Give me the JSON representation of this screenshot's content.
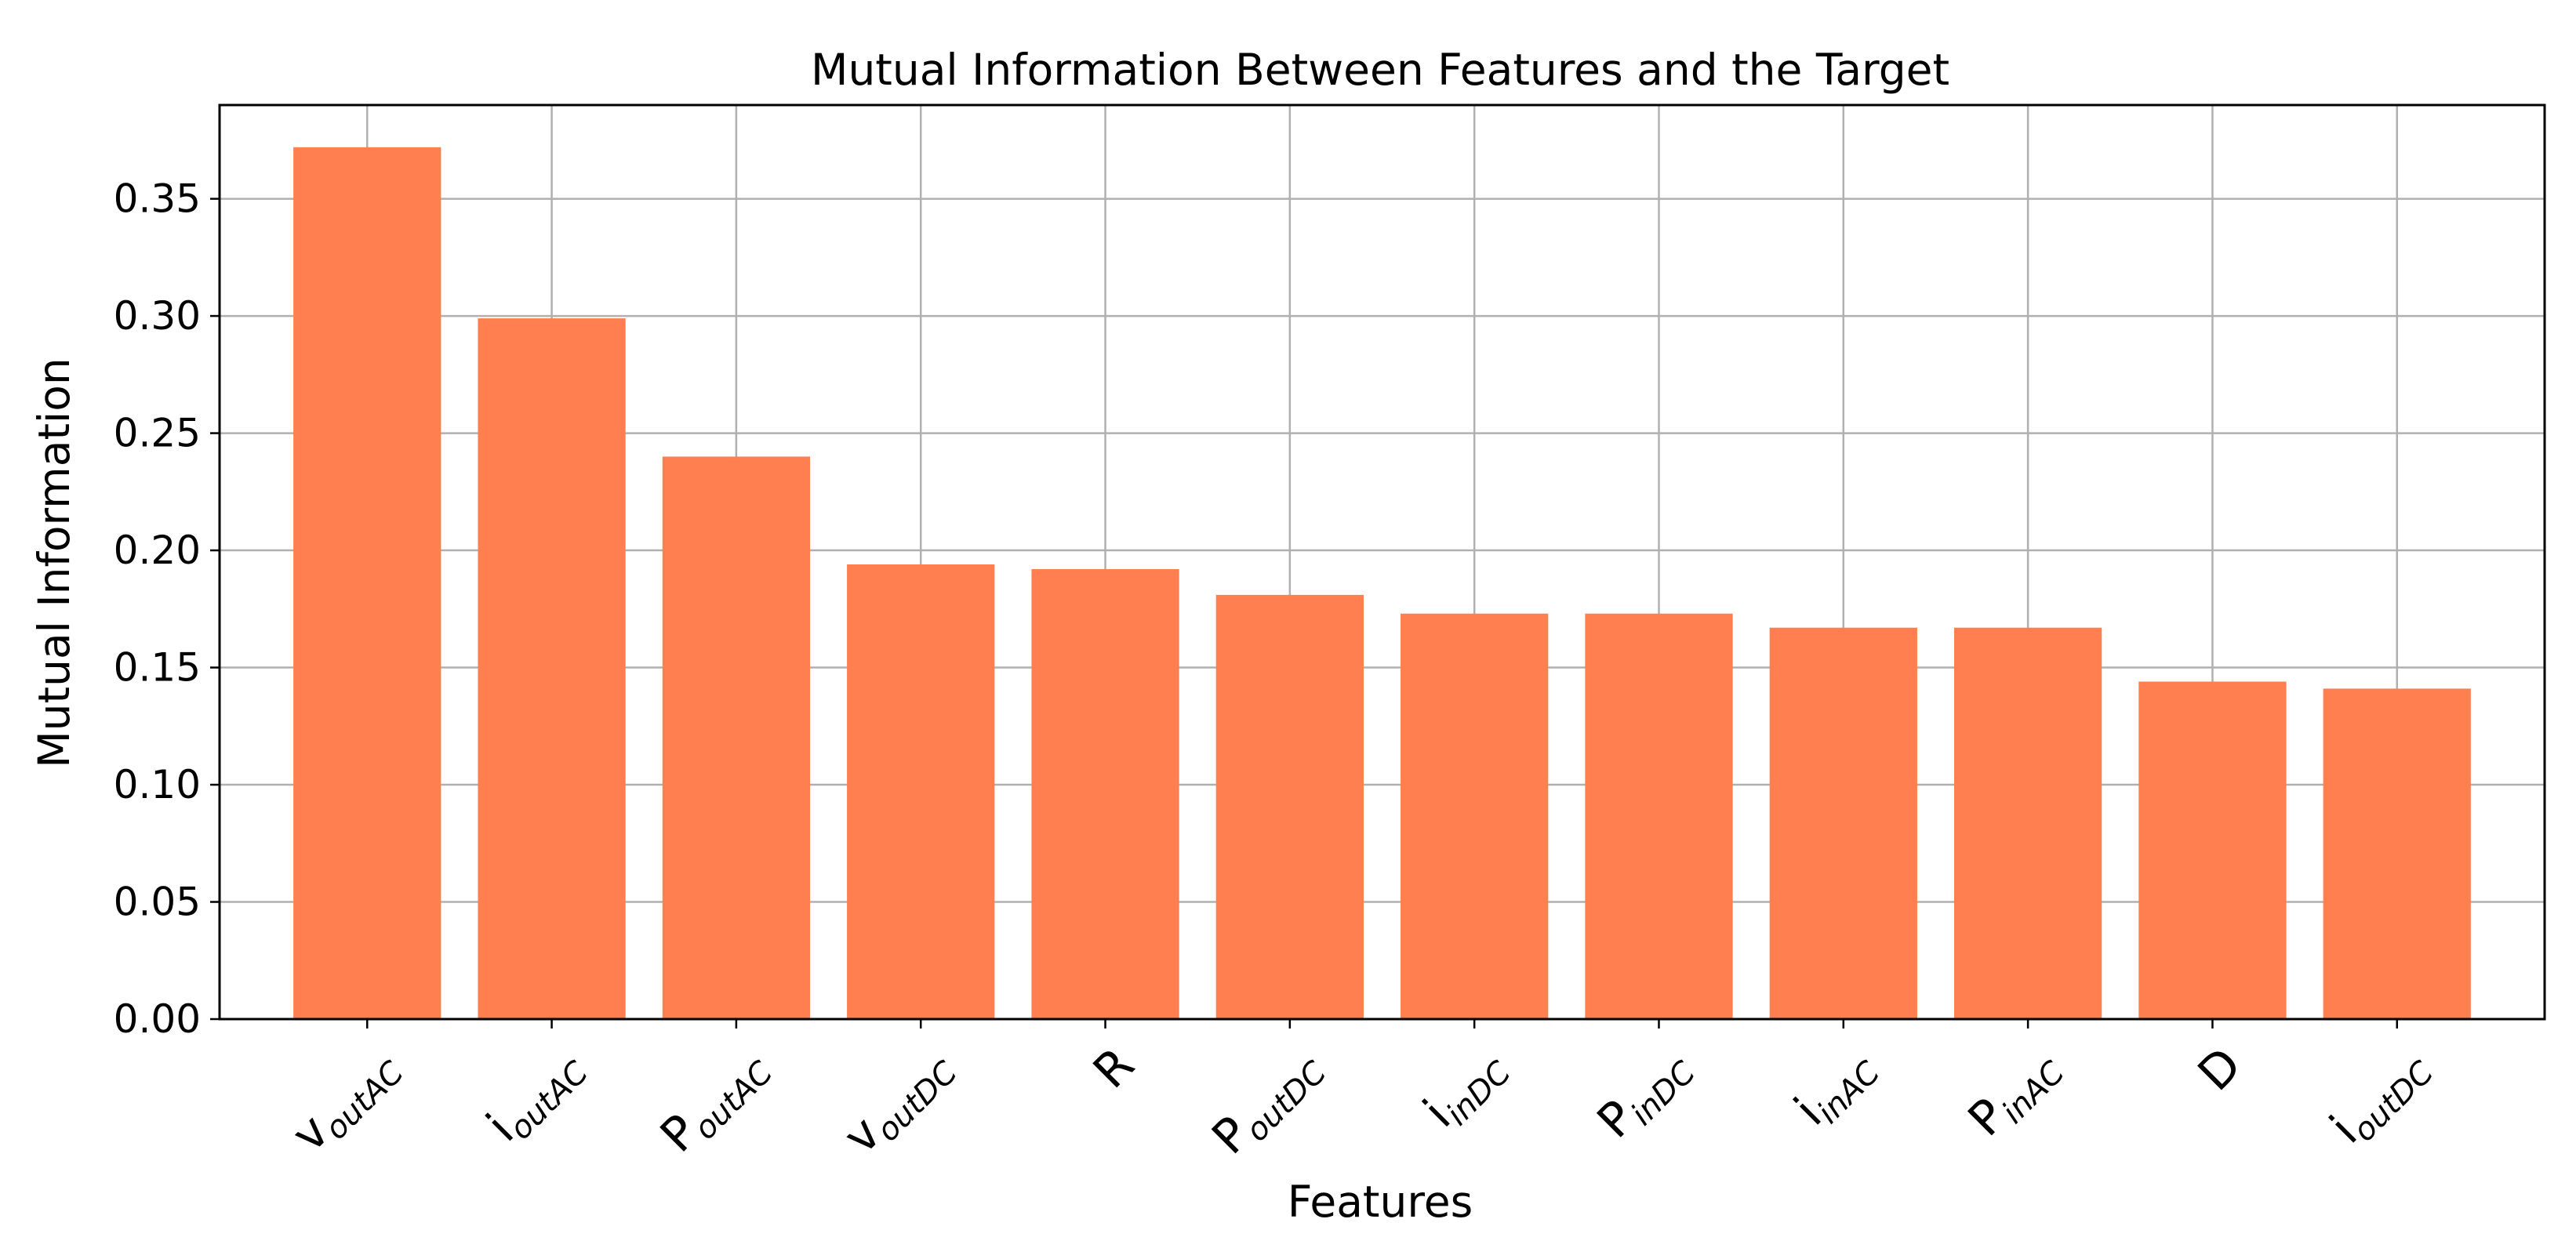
{
  "chart_data": {
    "type": "bar",
    "title": "Mutual Information Between Features and the Target",
    "xlabel": "Features",
    "ylabel": "Mutual Information",
    "categories": [
      {
        "main": "v",
        "sub": "outAC"
      },
      {
        "main": "i",
        "sub": "outAC"
      },
      {
        "main": "P",
        "sub": "outAC"
      },
      {
        "main": "v",
        "sub": "outDC"
      },
      {
        "main": "R",
        "sub": ""
      },
      {
        "main": "P",
        "sub": "outDC"
      },
      {
        "main": "i",
        "sub": "inDC"
      },
      {
        "main": "P",
        "sub": "inDC"
      },
      {
        "main": "i",
        "sub": "inAC"
      },
      {
        "main": "P",
        "sub": "inAC"
      },
      {
        "main": "D",
        "sub": ""
      },
      {
        "main": "i",
        "sub": "outDC"
      }
    ],
    "values": [
      0.372,
      0.299,
      0.24,
      0.194,
      0.192,
      0.181,
      0.173,
      0.173,
      0.167,
      0.167,
      0.144,
      0.141
    ],
    "ylim": [
      0,
      0.39
    ],
    "yticks": [
      "0.00",
      "0.05",
      "0.10",
      "0.15",
      "0.20",
      "0.25",
      "0.30",
      "0.35"
    ],
    "grid": true,
    "bar_color": "#ff7f50",
    "grid_color": "#b0b0b0"
  }
}
